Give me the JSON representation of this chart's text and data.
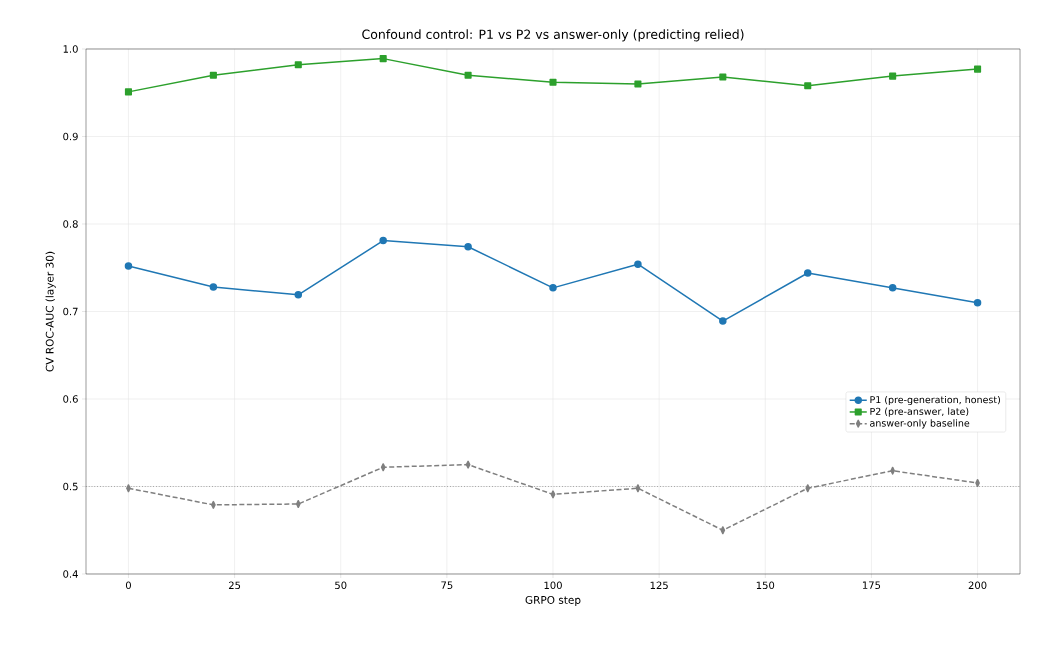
{
  "chart_data": {
    "type": "line",
    "title": "Confound control: P1 vs P2 vs answer-only (predicting relied)",
    "xlabel": "GRPO step",
    "ylabel": "CV ROC-AUC (layer 30)",
    "x": [
      0,
      20,
      40,
      60,
      80,
      100,
      120,
      140,
      160,
      180,
      200
    ],
    "series": [
      {
        "name": "P1 (pre-generation, honest)",
        "color": "#1f77b4",
        "marker": "circle",
        "line_style": "solid",
        "values": [
          0.752,
          0.728,
          0.719,
          0.781,
          0.774,
          0.727,
          0.754,
          0.689,
          0.744,
          0.727,
          0.71
        ]
      },
      {
        "name": "P2 (pre-answer, late)",
        "color": "#2ca02c",
        "marker": "square",
        "line_style": "solid",
        "values": [
          0.951,
          0.97,
          0.982,
          0.989,
          0.97,
          0.962,
          0.96,
          0.968,
          0.958,
          0.969,
          0.977
        ]
      },
      {
        "name": "answer-only baseline",
        "color": "#7f7f7f",
        "marker": "diamond",
        "line_style": "dashed",
        "values": [
          0.498,
          0.479,
          0.48,
          0.522,
          0.525,
          0.491,
          0.498,
          0.45,
          0.498,
          0.518,
          0.504
        ]
      }
    ],
    "ref_lines": [
      {
        "axis": "y",
        "value": 0.5,
        "color": "#808080",
        "line_style": "dotted"
      }
    ],
    "xlim": [
      -10,
      210
    ],
    "ylim": [
      0.4,
      1.0
    ],
    "xticks": [
      0,
      25,
      50,
      75,
      100,
      125,
      150,
      175,
      200
    ],
    "yticks": [
      0.4,
      0.5,
      0.6,
      0.7,
      0.8,
      0.9,
      {
        "value": 1.0,
        "label": "1.0"
      }
    ],
    "grid": true,
    "legend": "bottom right"
  }
}
